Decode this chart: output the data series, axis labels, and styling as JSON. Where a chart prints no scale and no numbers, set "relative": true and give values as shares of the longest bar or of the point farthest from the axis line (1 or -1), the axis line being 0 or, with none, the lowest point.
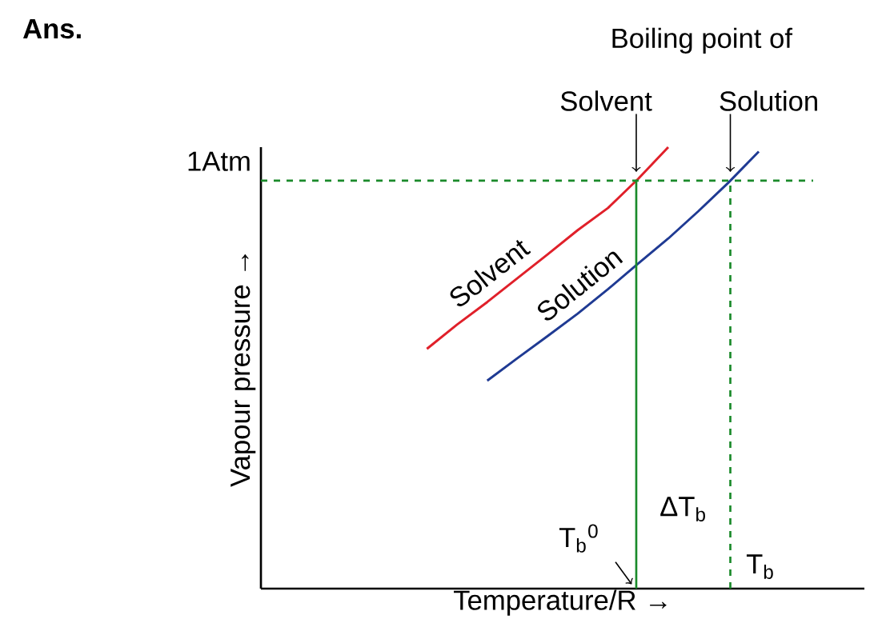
{
  "chart_data": {
    "type": "line",
    "title": "Ans.",
    "xlabel": "Temperature/R →",
    "ylabel": "Vapour pressure →",
    "relative": true,
    "categories": [
      null,
      null,
      null,
      null,
      null,
      null,
      null,
      null,
      null,
      null,
      null,
      null,
      null,
      null,
      null,
      null,
      null,
      null,
      null,
      null
    ],
    "series": [
      {
        "name": "Solvent",
        "color": "#e0202a",
        "values": [
          null,
          null,
          null,
          null,
          null,
          0.543,
          0.598,
          0.649,
          0.703,
          0.757,
          0.812,
          0.862,
          0.928,
          1.0,
          null,
          null,
          null,
          null,
          null,
          null
        ]
      },
      {
        "name": "Solution",
        "color": "#1f3a93",
        "values": [
          null,
          null,
          null,
          null,
          null,
          null,
          null,
          0.471,
          0.522,
          0.572,
          0.623,
          0.678,
          0.736,
          0.793,
          0.855,
          0.92,
          0.99,
          null,
          null,
          null
        ]
      }
    ],
    "ref_lines": [
      {
        "axis": "y",
        "value": 0.924,
        "label": "1Atm",
        "color": "#1a8a2a",
        "line_style": "dashed"
      }
    ],
    "annotations": [
      "Boiling point of",
      "Solvent",
      "Solution",
      "ΔT$_{b}$",
      "T$_{b}$$^{0}$",
      "T$_{b}$"
    ]
  }
}
